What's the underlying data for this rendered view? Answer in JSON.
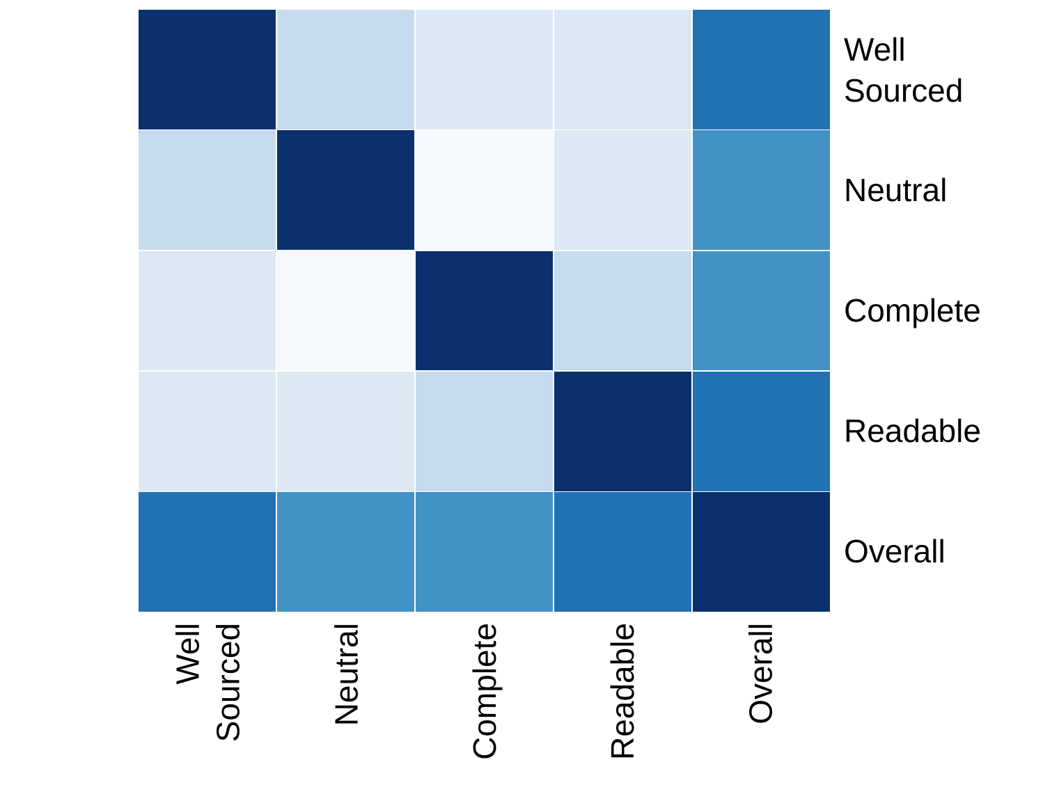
{
  "figure": {
    "background_color": "#ffffff",
    "text_color": "#000000",
    "grid_line_color": "#ffffff"
  },
  "chart_data": {
    "type": "heatmap",
    "title": "",
    "xlabel": "",
    "ylabel": "",
    "colormap": "Blues",
    "value_range": [
      0,
      1
    ],
    "legend": "none",
    "rows": [
      "Well Sourced",
      "Neutral",
      "Complete",
      "Readable",
      "Overall"
    ],
    "columns": [
      "Well Sourced",
      "Neutral",
      "Complete",
      "Readable",
      "Overall"
    ],
    "row_label_lines": [
      [
        "Well",
        "Sourced"
      ],
      [
        "Neutral"
      ],
      [
        "Complete"
      ],
      [
        "Readable"
      ],
      [
        "Overall"
      ]
    ],
    "col_label_lines": [
      [
        "Well",
        "Sourced"
      ],
      [
        "Neutral"
      ],
      [
        "Complete"
      ],
      [
        "Readable"
      ],
      [
        "Overall"
      ]
    ],
    "values": [
      [
        1.0,
        0.25,
        0.13,
        0.13,
        0.75
      ],
      [
        0.25,
        1.0,
        0.02,
        0.13,
        0.6
      ],
      [
        0.13,
        0.02,
        1.0,
        0.25,
        0.6
      ],
      [
        0.13,
        0.13,
        0.25,
        1.0,
        0.75
      ],
      [
        0.75,
        0.6,
        0.6,
        0.75,
        1.0
      ]
    ],
    "cell_colors": [
      [
        "#0a316e",
        "#c7dbee",
        "#dce8f4",
        "#dce8f4",
        "#2171b5"
      ],
      [
        "#c7dbee",
        "#0a316e",
        "#f5f9fd",
        "#dce8f4",
        "#4292c6"
      ],
      [
        "#dce8f4",
        "#f5f9fd",
        "#0a316e",
        "#c7dbee",
        "#4292c6"
      ],
      [
        "#dce8f4",
        "#dce8f4",
        "#c7dbee",
        "#0a316e",
        "#2171b5"
      ],
      [
        "#2171b5",
        "#4292c6",
        "#4292c6",
        "#2171b5",
        "#0a316e"
      ]
    ]
  }
}
